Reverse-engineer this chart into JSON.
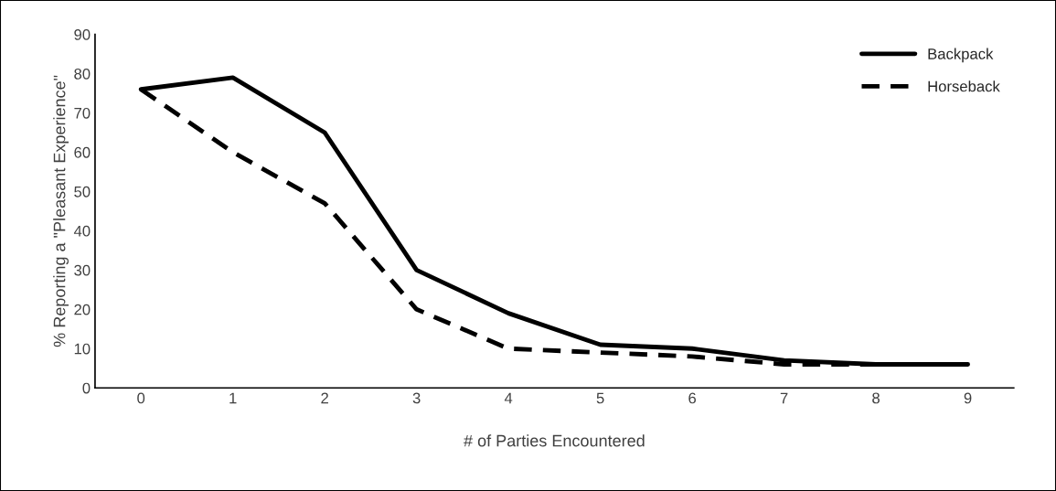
{
  "chart_data": {
    "type": "line",
    "xlabel": "# of Parties Encountered",
    "ylabel": "% Reporting a \"Pleasant Experience\"",
    "categories": [
      "0",
      "1",
      "2",
      "3",
      "4",
      "5",
      "6",
      "7",
      "8",
      "9"
    ],
    "series": [
      {
        "name": "Backpack",
        "color": "#000000",
        "line_style": "solid",
        "values": [
          76,
          79,
          65,
          30,
          19,
          11,
          10,
          7,
          6,
          6
        ]
      },
      {
        "name": "Horseback",
        "color": "#000000",
        "line_style": "dashed",
        "values": [
          76,
          60,
          47,
          20,
          10,
          9,
          8,
          6,
          6,
          6
        ]
      }
    ],
    "ylim": [
      0,
      90
    ],
    "yticks": [
      0,
      10,
      20,
      30,
      40,
      50,
      60,
      70,
      80,
      90
    ],
    "grid": false,
    "legend": "top right",
    "marker": "none"
  }
}
